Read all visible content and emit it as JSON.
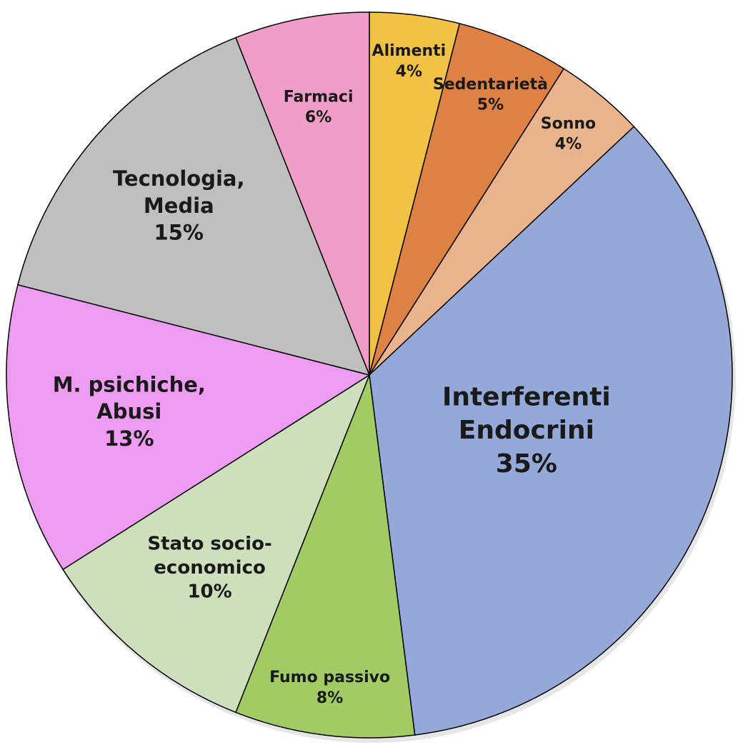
{
  "chart_data": {
    "type": "pie",
    "categories": [
      "Alimenti",
      "Sedentarietà",
      "Sonno",
      "Interferenti Endocrini",
      "Fumo passivo",
      "Stato socio-economico",
      "M. psichiche, Abusi",
      "Tecnologia, Media",
      "Farmaci"
    ],
    "values": [
      4,
      5,
      4,
      35,
      8,
      10,
      13,
      15,
      6
    ],
    "value_labels": [
      "4%",
      "5%",
      "4%",
      "35%",
      "8%",
      "10%",
      "13%",
      "15%",
      "6%"
    ],
    "colors": [
      "#f2c244",
      "#dd8144",
      "#e9b48c",
      "#95a9d9",
      "#a0cc63",
      "#cde0bb",
      "#ee9cf2",
      "#bfbfbf",
      "#f09ec8"
    ]
  }
}
